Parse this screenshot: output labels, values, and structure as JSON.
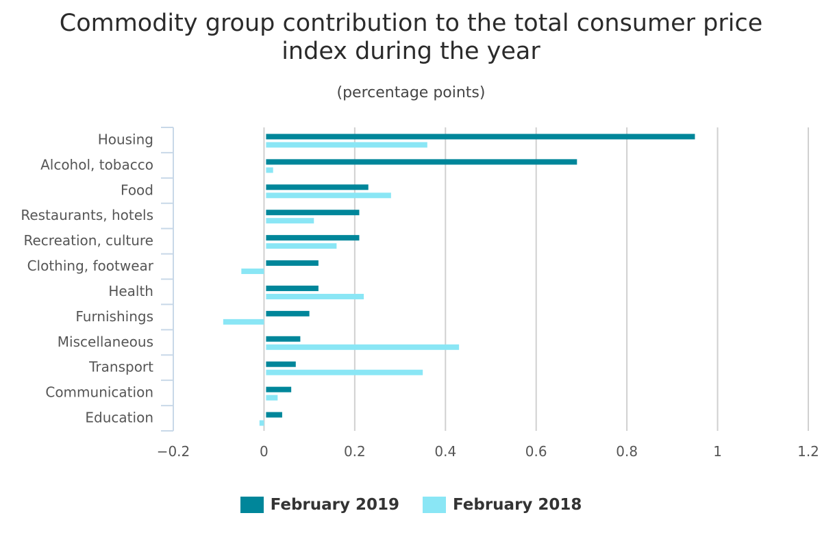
{
  "chart_data": {
    "type": "bar",
    "orientation": "horizontal",
    "title": "Commodity group contribution to the total consumer price index during the year",
    "subtitle": "(percentage points)",
    "categories": [
      "Housing",
      "Alcohol, tobacco",
      "Food",
      "Restaurants, hotels",
      "Recreation, culture",
      "Clothing, footwear",
      "Health",
      "Furnishings",
      "Miscellaneous",
      "Transport",
      "Communication",
      "Education"
    ],
    "series": [
      {
        "name": "February 2019",
        "color": "#00869a",
        "values": [
          0.95,
          0.69,
          0.23,
          0.21,
          0.21,
          0.12,
          0.12,
          0.1,
          0.08,
          0.07,
          0.06,
          0.04
        ]
      },
      {
        "name": "February 2018",
        "color": "#8ae6f5",
        "values": [
          0.36,
          0.02,
          0.28,
          0.11,
          0.16,
          -0.05,
          0.22,
          -0.09,
          0.43,
          0.35,
          0.03,
          -0.01
        ]
      }
    ],
    "xlim": [
      -0.2,
      1.2
    ],
    "xticks": [
      -0.2,
      0,
      0.2,
      0.4,
      0.6,
      0.8,
      1,
      1.2
    ],
    "xtick_labels": [
      "−0.2",
      "0",
      "0.2",
      "0.4",
      "0.6",
      "0.8",
      "1",
      "1.2"
    ],
    "grid": true,
    "legend_position": "bottom"
  }
}
